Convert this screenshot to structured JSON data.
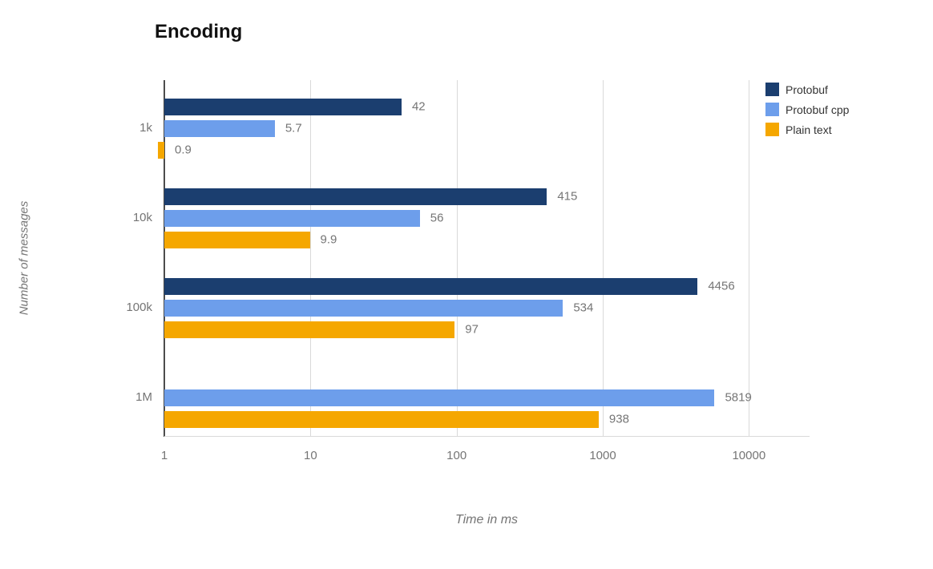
{
  "chart_data": {
    "type": "bar",
    "orientation": "horizontal",
    "title": "Encoding",
    "xlabel": "Time in ms",
    "ylabel": "Number of messages",
    "x_scale": "log",
    "x_ticks": [
      1,
      10,
      100,
      1000,
      10000
    ],
    "x_max": 26000,
    "grid": true,
    "legend_position": "top-right",
    "categories": [
      "1k",
      "10k",
      "100k",
      "1M"
    ],
    "series": [
      {
        "name": "Protobuf",
        "color": "#1B3E6F",
        "values": [
          42,
          415,
          4456,
          null
        ]
      },
      {
        "name": "Protobuf cpp",
        "color": "#6D9EEB",
        "values": [
          5.7,
          56,
          534,
          5819
        ]
      },
      {
        "name": "Plain text",
        "color": "#F5A700",
        "values": [
          0.9,
          9.9,
          97,
          938
        ]
      }
    ]
  },
  "colors": {
    "background": "#FFFFFF",
    "gridline": "#D9D9D9",
    "axis_line": "#4D4D4D",
    "label_text": "#757575",
    "title_text": "#111111",
    "legend_text": "#333333"
  }
}
